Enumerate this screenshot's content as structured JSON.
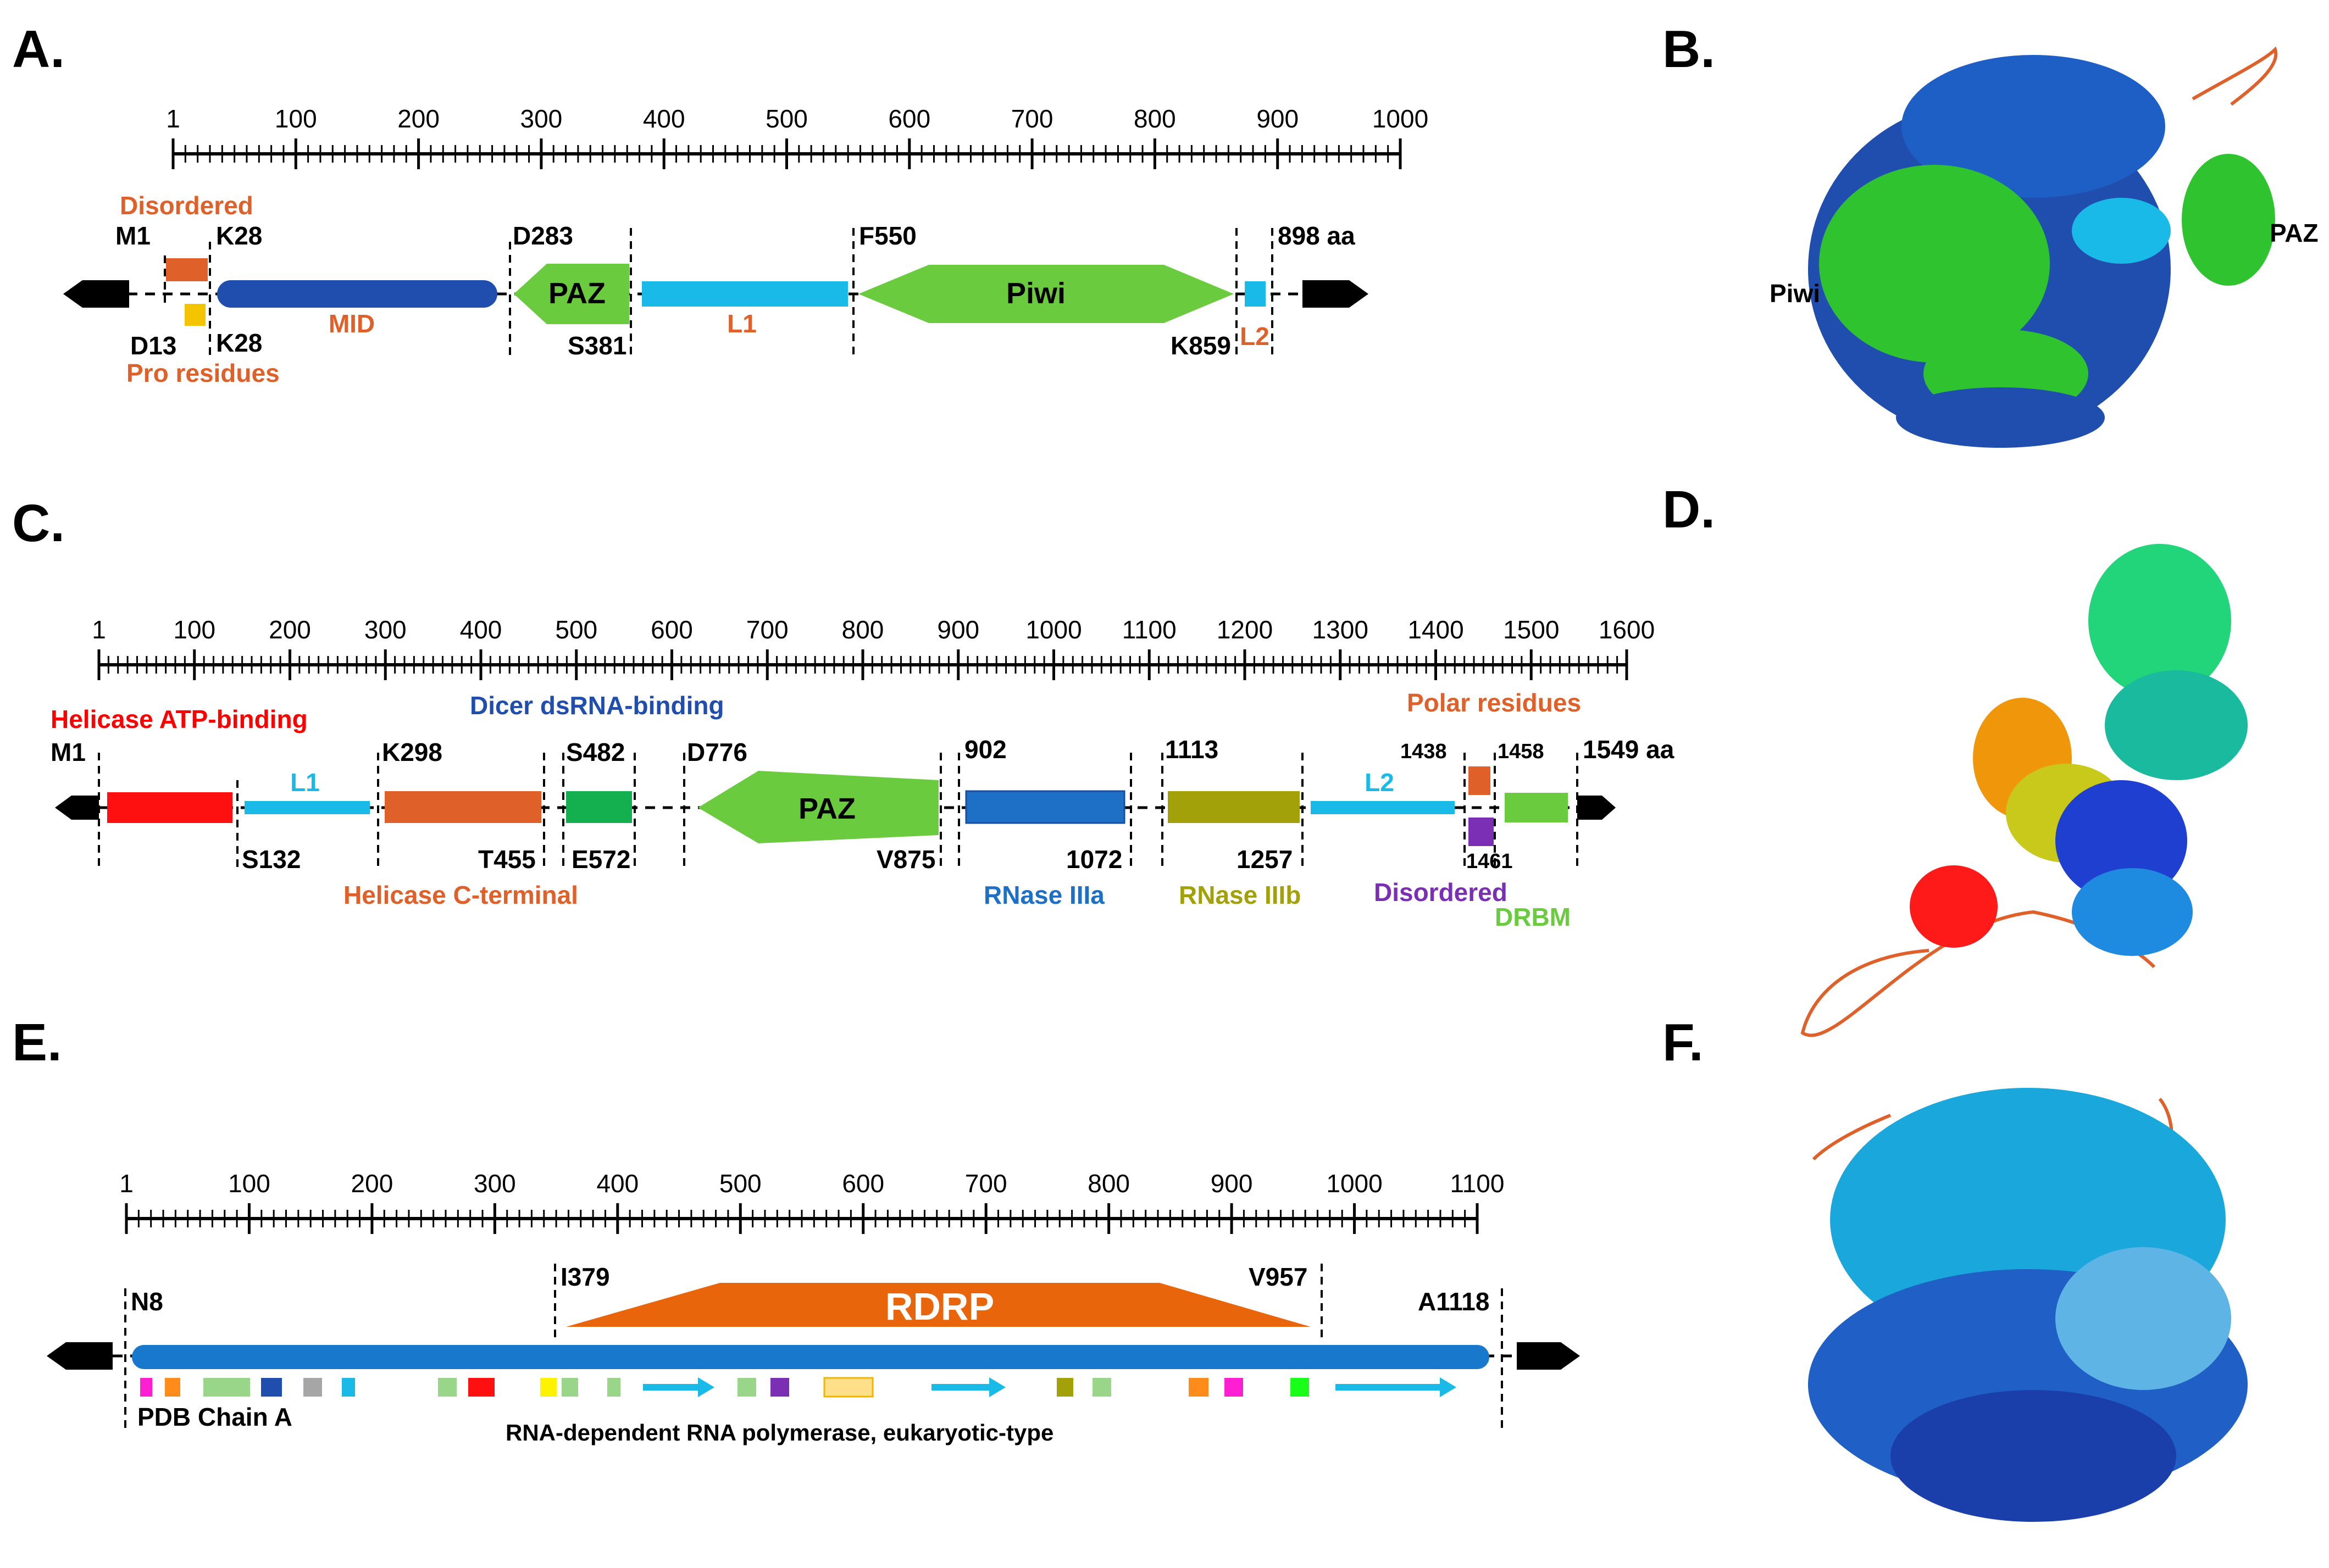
{
  "panels": {
    "A": {
      "letter": "A.",
      "ruler_ticks": [
        "1",
        "100",
        "200",
        "300",
        "400",
        "500",
        "600",
        "700",
        "800",
        "900",
        "1000"
      ],
      "labels": {
        "disordered": "Disordered",
        "m1": "M1",
        "k28_top": "K28",
        "d283": "D283",
        "f550": "F550",
        "aa898": "898 aa",
        "paz": "PAZ",
        "piwi": "Piwi",
        "mid": "MID",
        "l1": "L1",
        "l2": "L2",
        "d13": "D13",
        "k28_bottom": "K28",
        "pro_residues": "Pro residues",
        "s381": "S381",
        "k859": "K859"
      }
    },
    "B": {
      "letter": "B.",
      "labels": {
        "piwi": "Piwi",
        "paz": "PAZ"
      }
    },
    "C": {
      "letter": "C.",
      "ruler_ticks": [
        "1",
        "100",
        "200",
        "300",
        "400",
        "500",
        "600",
        "700",
        "800",
        "900",
        "1000",
        "1100",
        "1200",
        "1300",
        "1400",
        "1500",
        "1600"
      ],
      "labels": {
        "helicase_atp": "Helicase ATP-binding",
        "dicer_dsrna": "Dicer dsRNA-binding",
        "polar": "Polar residues",
        "m1": "M1",
        "k298": "K298",
        "s482": "S482",
        "d776": "D776",
        "n902": "902",
        "n1113": "1113",
        "n1438": "1438",
        "n1458": "1458",
        "aa1549": "1549 aa",
        "l1": "L1",
        "l2": "L2",
        "paz": "PAZ",
        "s132": "S132",
        "t455": "T455",
        "e572": "E572",
        "v875": "V875",
        "n1072": "1072",
        "n1257": "1257",
        "n1461": "1461",
        "helicase_c": "Helicase C-terminal",
        "rnase3a": "RNase IIIa",
        "rnase3b": "RNase IIIb",
        "disordered": "Disordered",
        "drbm": "DRBM"
      }
    },
    "D": {
      "letter": "D."
    },
    "E": {
      "letter": "E.",
      "ruler_ticks": [
        "1",
        "100",
        "200",
        "300",
        "400",
        "500",
        "600",
        "700",
        "800",
        "900",
        "1000",
        "1100"
      ],
      "labels": {
        "n8": "N8",
        "i379": "I379",
        "v957": "V957",
        "a1118": "A1118",
        "rdrp": "RDRP",
        "pdb_chain": "PDB Chain A",
        "rdrp_family": "RNA-dependent RNA polymerase, eukaryotic-type"
      }
    },
    "F": {
      "letter": "F."
    }
  },
  "colors": {
    "black": "#000000",
    "disordered_orange": "#E0602A",
    "pro_yellow": "#F5C400",
    "mid_blue": "#1F4EAF",
    "paz_green": "#6BCB3F",
    "linker_cyan": "#1ABAE8",
    "helicase_red": "#FF1010",
    "helicase_c_orange": "#E0602A",
    "dicer_green": "#14B050",
    "rnase3a_blue": "#1E6FC6",
    "rnase3b_olive": "#A3A10A",
    "purple": "#7B2FB5",
    "drbm_green": "#6BCB3F",
    "rdrp_orange": "#E8650C",
    "rdrp_bar_blue": "#1778CC",
    "label_red": "#FF0000",
    "label_blue": "#1F4EAF",
    "label_orange": "#E0602A",
    "label_purple": "#7B2FB5",
    "label_green": "#6BCB3F",
    "label_olive": "#A3A10A",
    "label_cyan": "#1ABAE8",
    "label_rnase_blue": "#1E6FC6"
  }
}
